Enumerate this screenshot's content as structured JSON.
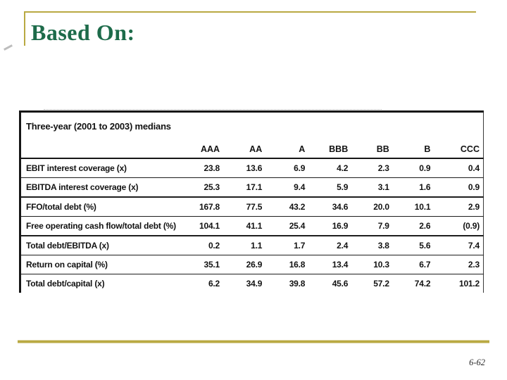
{
  "slide": {
    "title": "Based On:",
    "page_number": "6-62"
  },
  "table": {
    "title": "Three-year (2001 to 2003) medians",
    "rating_columns": [
      "AAA",
      "AA",
      "A",
      "BBB",
      "BB",
      "B",
      "CCC"
    ],
    "rows": [
      {
        "label": "EBIT interest coverage (x)",
        "values": [
          "23.8",
          "13.6",
          "6.9",
          "4.2",
          "2.3",
          "0.9",
          "0.4"
        ]
      },
      {
        "label": "EBITDA interest coverage (x)",
        "values": [
          "25.3",
          "17.1",
          "9.4",
          "5.9",
          "3.1",
          "1.6",
          "0.9"
        ]
      },
      {
        "label": "FFO/total debt (%)",
        "values": [
          "167.8",
          "77.5",
          "43.2",
          "34.6",
          "20.0",
          "10.1",
          "2.9"
        ]
      },
      {
        "label": "Free operating cash flow/total debt (%)",
        "values": [
          "104.1",
          "41.1",
          "25.4",
          "16.9",
          "7.9",
          "2.6",
          "(0.9)"
        ]
      },
      {
        "label": "Total debt/EBITDA (x)",
        "values": [
          "0.2",
          "1.1",
          "1.7",
          "2.4",
          "3.8",
          "5.6",
          "7.4"
        ]
      },
      {
        "label": "Return on capital (%)",
        "values": [
          "35.1",
          "26.9",
          "16.8",
          "13.4",
          "10.3",
          "6.7",
          "2.3"
        ]
      },
      {
        "label": "Total debt/capital (x)",
        "values": [
          "6.2",
          "34.9",
          "39.8",
          "45.6",
          "57.2",
          "74.2",
          "101.2"
        ]
      }
    ]
  },
  "colors": {
    "title_green": "#1d6b4a",
    "accent_gold": "#b9a942",
    "table_ink": "#161616"
  }
}
